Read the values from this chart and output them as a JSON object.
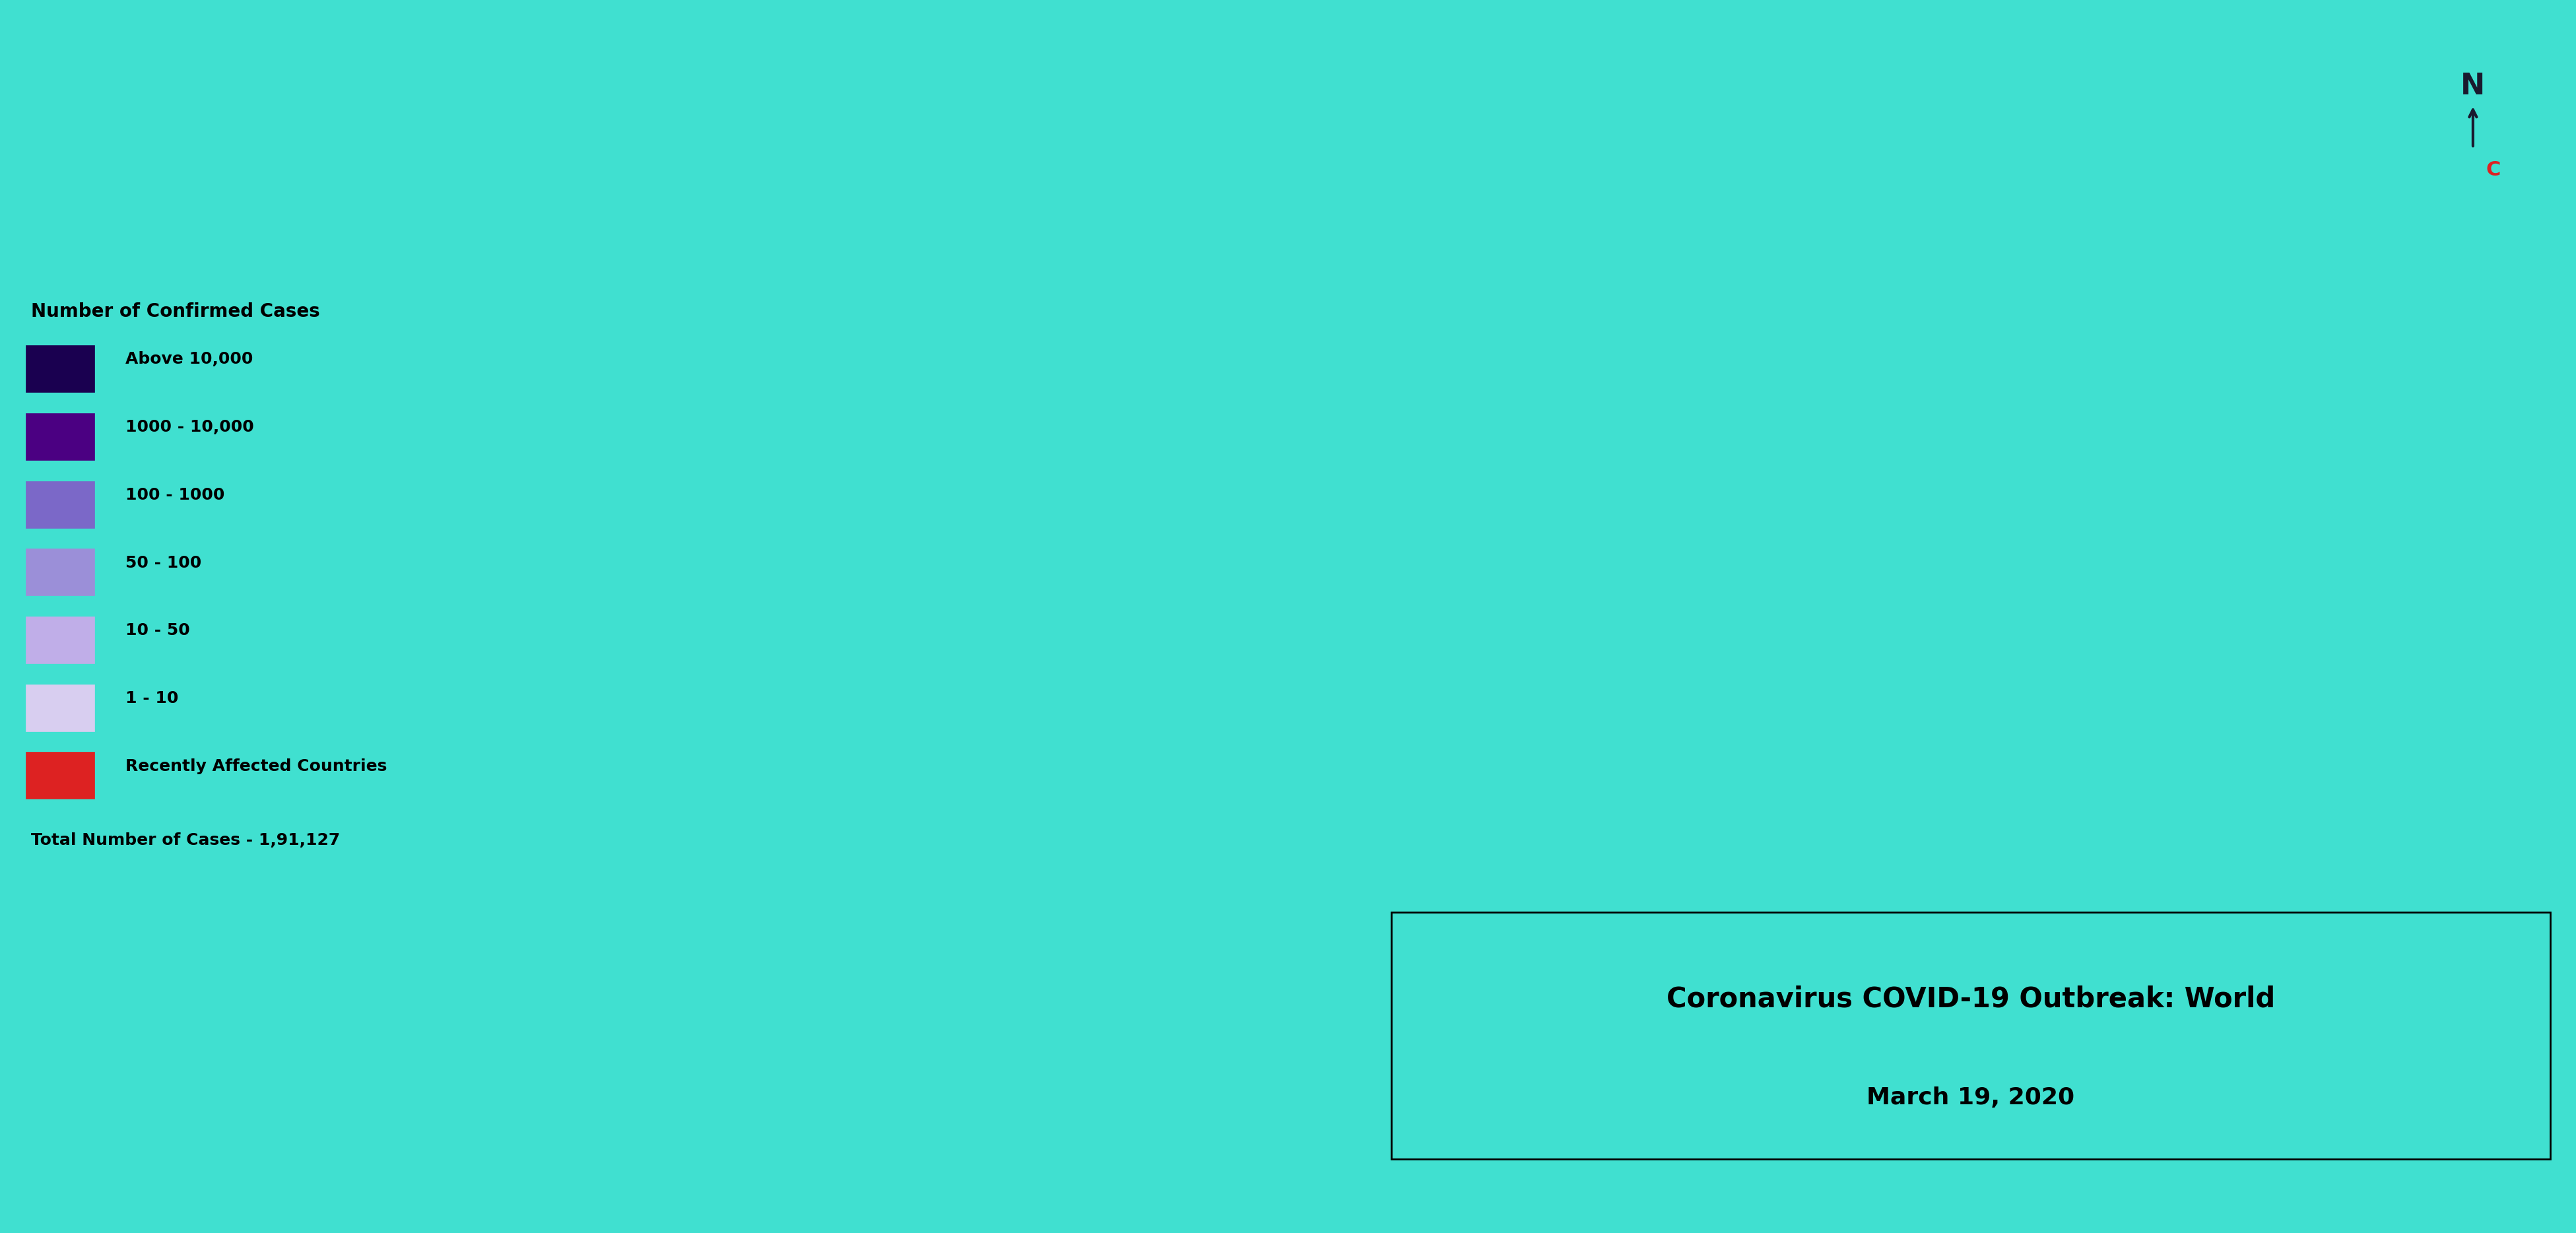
{
  "title_line1": "Coronavirus COVID-19 Outbreak: World",
  "title_line2": "March 19, 2020",
  "total_cases": "Total Number of Cases - 1,91,127",
  "legend_title": "Number of Confirmed Cases",
  "legend_items": [
    {
      "label": "Above 10,000",
      "color": "#1a0050"
    },
    {
      "label": "1000 - 10,000",
      "color": "#4b0082"
    },
    {
      "label": "100 - 1000",
      "color": "#7b68c8"
    },
    {
      "label": "50 - 100",
      "color": "#9b8fd8"
    },
    {
      "label": "10 - 50",
      "color": "#c0aee8"
    },
    {
      "label": "1 - 10",
      "color": "#d8cef0"
    },
    {
      "label": "Recently Affected Countries",
      "color": "#dd2222"
    }
  ],
  "ocean_color": "#40e0d0",
  "background_color": "#40e0d0",
  "no_data_color": "#ffffff",
  "title_box_color": "#40e0d0",
  "title_box_edge": "#000000",
  "north_arrow_color": "#1a1a2e",
  "north_c_color": "#dd2222",
  "country_colors": {
    "China": "#1a0050",
    "Italy": "#1a0050",
    "Iran": "#1a0050",
    "Germany": "#1a0050",
    "Spain": "#1a0050",
    "France": "#1a0050",
    "South Korea": "#1a0050",
    "Switzerland": "#1a0050",
    "United States of America": "#1a0050",
    "Norway": "#4b0082",
    "Sweden": "#4b0082",
    "Denmark": "#4b0082",
    "Netherlands": "#4b0082",
    "Belgium": "#4b0082",
    "Austria": "#4b0082",
    "United Kingdom": "#4b0082",
    "Japan": "#4b0082",
    "Malaysia": "#4b0082",
    "Canada": "#4b0082",
    "Australia": "#4b0082",
    "Brazil": "#4b0082",
    "Portugal": "#4b0082",
    "Greece": "#4b0082",
    "Turkey": "#4b0082",
    "Israel": "#4b0082",
    "Czechia": "#4b0082",
    "Poland": "#4b0082",
    "Finland": "#4b0082",
    "Iceland": "#4b0082",
    "Bahrain": "#4b0082",
    "Kuwait": "#4b0082",
    "Ireland": "#4b0082",
    "Qatar": "#4b0082",
    "Russia": "#7b68c8",
    "India": "#7b68c8",
    "Pakistan": "#7b68c8",
    "Indonesia": "#7b68c8",
    "Philippines": "#7b68c8",
    "Thailand": "#7b68c8",
    "Singapore": "#7b68c8",
    "Egypt": "#7b68c8",
    "Saudi Arabia": "#7b68c8",
    "United Arab Emirates": "#7b68c8",
    "Iraq": "#7b68c8",
    "Lebanon": "#7b68c8",
    "Algeria": "#7b68c8",
    "South Africa": "#7b68c8",
    "Chile": "#7b68c8",
    "Argentina": "#7b68c8",
    "Mexico": "#7b68c8",
    "Peru": "#7b68c8",
    "Colombia": "#7b68c8",
    "Ecuador": "#7b68c8",
    "Vietnam": "#7b68c8",
    "Hungary": "#7b68c8",
    "Slovakia": "#7b68c8",
    "Romania": "#7b68c8",
    "Serbia": "#7b68c8",
    "Croatia": "#7b68c8",
    "Slovenia": "#7b68c8",
    "Bulgaria": "#7b68c8",
    "Cyprus": "#7b68c8",
    "Estonia": "#7b68c8",
    "Latvia": "#7b68c8",
    "Lithuania": "#7b68c8",
    "Luxembourg": "#7b68c8",
    "Oman": "#9b8fd8",
    "Morocco": "#9b8fd8",
    "Tunisia": "#9b8fd8",
    "Jordan": "#9b8fd8",
    "Afghanistan": "#9b8fd8",
    "Sri Lanka": "#9b8fd8",
    "Maldives": "#9b8fd8",
    "Cambodia": "#9b8fd8",
    "Myanmar": "#9b8fd8",
    "New Zealand": "#9b8fd8",
    "Costa Rica": "#9b8fd8",
    "Bolivia": "#9b8fd8",
    "Paraguay": "#9b8fd8",
    "Venezuela": "#9b8fd8",
    "Uruguay": "#9b8fd8",
    "Panama": "#9b8fd8",
    "Honduras": "#9b8fd8",
    "Dominican Republic": "#9b8fd8",
    "Cuba": "#9b8fd8",
    "Armenia": "#9b8fd8",
    "Azerbaijan": "#9b8fd8",
    "Georgia": "#9b8fd8",
    "Kazakhstan": "#9b8fd8",
    "Ukraine": "#9b8fd8",
    "Moldova": "#9b8fd8",
    "Belarus": "#9b8fd8",
    "North Macedonia": "#9b8fd8",
    "Albania": "#9b8fd8",
    "Montenegro": "#9b8fd8",
    "Malta": "#9b8fd8",
    "Brunei": "#c0aee8",
    "Nigeria": "#c0aee8",
    "Ethiopia": "#c0aee8",
    "Kenya": "#c0aee8",
    "Ghana": "#c0aee8",
    "Cameroon": "#c0aee8",
    "Ivory Coast": "#c0aee8",
    "Senegal": "#c0aee8",
    "Democratic Republic of the Congo": "#c0aee8",
    "Togo": "#c0aee8",
    "Rwanda": "#c0aee8",
    "Uganda": "#c0aee8",
    "Sudan": "#c0aee8",
    "Somalia": "#c0aee8",
    "Tanzania": "#c0aee8",
    "Burkina Faso": "#c0aee8",
    "Guinea": "#c0aee8",
    "Haiti": "#c0aee8",
    "Guatemala": "#c0aee8",
    "El Salvador": "#c0aee8",
    "Nicaragua": "#c0aee8",
    "Trinidad and Tobago": "#c0aee8",
    "Jamaica": "#c0aee8",
    "Guyana": "#c0aee8",
    "Suriname": "#c0aee8",
    "Kyrgyzstan": "#c0aee8",
    "Uzbekistan": "#c0aee8",
    "Tajikistan": "#c0aee8",
    "Turkmenistan": "#c0aee8",
    "Mongolia": "#c0aee8",
    "Nepal": "#c0aee8",
    "Bhutan": "#c0aee8",
    "Bangladesh": "#c0aee8",
    "Libya": "#c0aee8",
    "Eswatini": "#dd2222",
    "Gabon": "#dd2222",
    "Equatorial Guinea": "#dd2222",
    "Central African Republic": "#dd2222",
    "Congo": "#dd2222",
    "Cape Verde": "#dd2222",
    "Mauritania": "#dd2222",
    "Niger": "#dd2222",
    "Mali": "#dd2222",
    "Chad": "#dd2222",
    "Djibouti": "#dd2222",
    "Comoros": "#dd2222",
    "Seychelles": "#dd2222",
    "Reunion": "#dd2222",
    "Martinique": "#dd2222",
    "Antigua and Barbuda": "#dd2222",
    "Saint Lucia": "#dd2222",
    "Saint Vincent and the Grenadines": "#dd2222",
    "Guadeloupe": "#dd2222",
    "French Guiana": "#dd2222",
    "New Caledonia": "#dd2222",
    "Andorra": "#dd2222",
    "San Marino": "#dd2222",
    "Liechtenstein": "#dd2222",
    "Monaco": "#dd2222",
    "Vatican": "#dd2222",
    "Kosovo": "#dd2222",
    "Bosnia and Herzegovina": "#dd2222"
  }
}
